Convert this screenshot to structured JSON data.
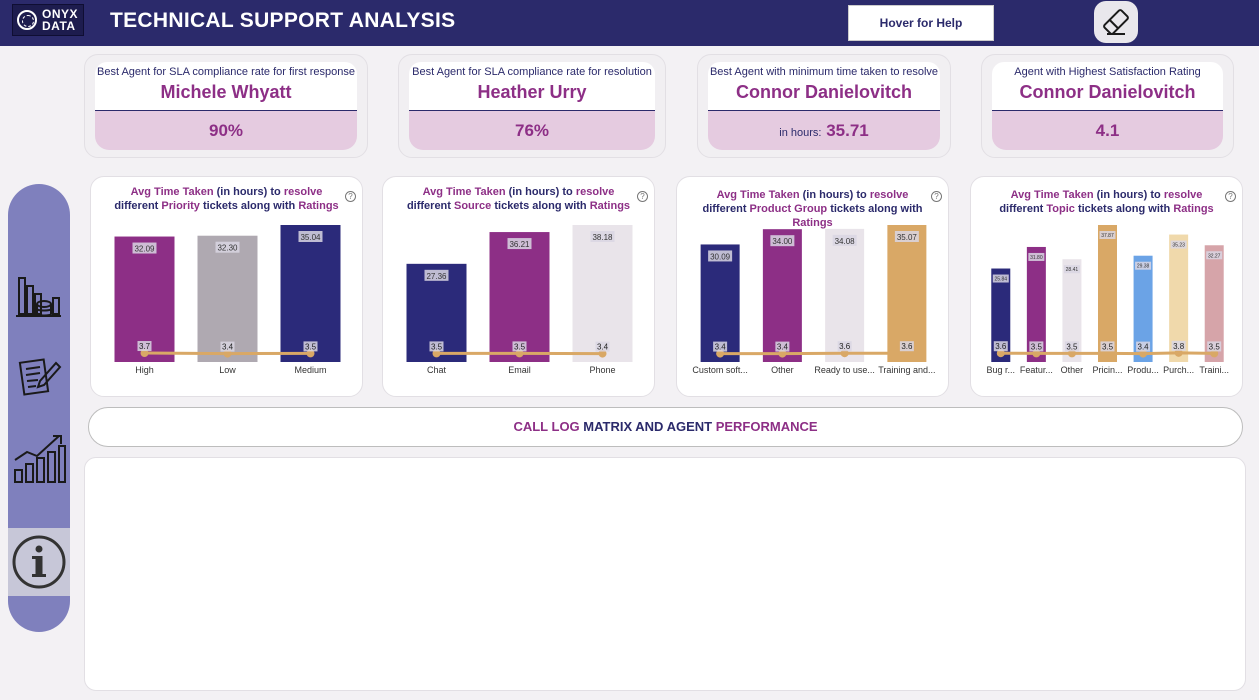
{
  "header": {
    "logo_line1": "ONYX",
    "logo_line2": "DATA",
    "title": "TECHNICAL SUPPORT ANALYSIS",
    "help_label": "Hover for Help",
    "eraser_icon": "eraser-icon"
  },
  "kpis": [
    {
      "label": "Best Agent for SLA compliance rate for first response",
      "name": "Michele Whyatt",
      "prefix": "",
      "value": "90%"
    },
    {
      "label": "Best Agent for SLA compliance rate for resolution",
      "name": "Heather Urry",
      "prefix": "",
      "value": "76%"
    },
    {
      "label": "Best Agent with minimum time taken to resolve",
      "name": "Connor Danielovitch",
      "prefix": "in hours:",
      "value": "35.71"
    },
    {
      "label": "Agent with Highest Satisfaction Rating",
      "name": "Connor Danielovitch",
      "prefix": "",
      "value": "4.1"
    }
  ],
  "sidebar": {
    "items": [
      {
        "icon": "database-chart-icon"
      },
      {
        "icon": "report-pen-icon"
      },
      {
        "icon": "growth-chart-icon"
      },
      {
        "icon": "info-icon"
      }
    ]
  },
  "charts": [
    {
      "title": {
        "a": "Avg Time Taken",
        "b": " (in hours) to ",
        "c": "resolve",
        "d": "different ",
        "e": "Priority",
        "f": " tickets along with ",
        "g": "Ratings"
      },
      "help_symbol": "?"
    },
    {
      "title": {
        "a": "Avg Time Taken",
        "b": " (in hours) to ",
        "c": "resolve",
        "d": "different ",
        "e": "Source",
        "f": " tickets along with ",
        "g": "Ratings"
      },
      "help_symbol": "?"
    },
    {
      "title": {
        "a": "Avg Time Taken",
        "b": " (in hours) to ",
        "c": "resolve",
        "d": "different ",
        "e": "Product Group",
        "f": " tickets along with ",
        "g": "Ratings"
      },
      "help_symbol": "?"
    },
    {
      "title": {
        "a": "Avg Time Taken",
        "b": " (in hours) to ",
        "c": "resolve",
        "d": "different ",
        "e": "Topic",
        "f": " tickets along with ",
        "g": "Ratings"
      },
      "help_symbol": "?"
    }
  ],
  "chart_data": [
    {
      "type": "bar",
      "categories": [
        "High",
        "Low",
        "Medium"
      ],
      "series": [
        {
          "values": [
            32.09,
            32.3,
            35.04
          ]
        },
        {
          "values": [
            3.7,
            3.4,
            3.5
          ]
        }
      ],
      "bar_labels": [
        "32.09",
        "32.30",
        "35.04"
      ],
      "line_labels": [
        "3.7",
        "3.4",
        "3.5"
      ],
      "colors": [
        "#8d2f86",
        "#afa9b1",
        "#2b2a7a"
      ],
      "line_color": "#d9a866",
      "ylim": [
        0,
        35.04
      ],
      "line_ylim": [
        0,
        40
      ]
    },
    {
      "type": "bar",
      "categories": [
        "Chat",
        "Email",
        "Phone"
      ],
      "series": [
        {
          "values": [
            27.36,
            36.21,
            38.18
          ]
        },
        {
          "values": [
            3.5,
            3.5,
            3.4
          ]
        }
      ],
      "bar_labels": [
        "27.36",
        "36.21",
        "38.18"
      ],
      "line_labels": [
        "3.5",
        "3.5",
        "3.4"
      ],
      "colors": [
        "#2b2a7a",
        "#8d2f86",
        "#e9e4ea"
      ],
      "line_color": "#d9a866",
      "ylim": [
        0,
        38.18
      ],
      "line_ylim": [
        0,
        40
      ]
    },
    {
      "type": "bar",
      "categories": [
        "Custom soft...",
        "Other",
        "Ready to use...",
        "Training and..."
      ],
      "series": [
        {
          "values": [
            30.09,
            34.0,
            34.08,
            35.07
          ]
        },
        {
          "values": [
            3.4,
            3.4,
            3.6,
            3.6
          ]
        }
      ],
      "bar_labels": [
        "30.09",
        "34.00",
        "34.08",
        "35.07"
      ],
      "line_labels": [
        "3.4",
        "3.4",
        "3.6",
        "3.6"
      ],
      "colors": [
        "#2b2a7a",
        "#8d2f86",
        "#e9e4ea",
        "#d9a866"
      ],
      "line_color": "#d9a866",
      "ylim": [
        0,
        35.07
      ],
      "line_ylim": [
        0,
        40
      ]
    },
    {
      "type": "bar",
      "categories": [
        "Bug r...",
        "Featur...",
        "Other",
        "Pricin...",
        "Produ...",
        "Purch...",
        "Traini..."
      ],
      "series": [
        {
          "values": [
            25.84,
            31.8,
            28.41,
            37.87,
            29.38,
            35.23,
            32.27
          ]
        },
        {
          "values": [
            3.6,
            3.5,
            3.5,
            3.5,
            3.4,
            3.8,
            3.5
          ]
        }
      ],
      "bar_labels": [
        "25.84",
        "31.80",
        "28.41",
        "37.87",
        "29.38",
        "35.23",
        "32.27"
      ],
      "line_labels": [
        "3.6",
        "3.5",
        "3.5",
        "3.5",
        "3.4",
        "3.8",
        "3.5"
      ],
      "colors": [
        "#2b2a7a",
        "#8d2f86",
        "#e9e4ea",
        "#d9a866",
        "#6ba3e6",
        "#f0d9ab",
        "#d6a4a9"
      ],
      "line_color": "#d9a866",
      "ylim": [
        0,
        37.87
      ],
      "line_ylim": [
        0,
        40
      ]
    }
  ],
  "section": {
    "part1": "CALL LOG",
    "part2": " MATRIX AND AGENT ",
    "part3": "PERFORMANCE"
  }
}
